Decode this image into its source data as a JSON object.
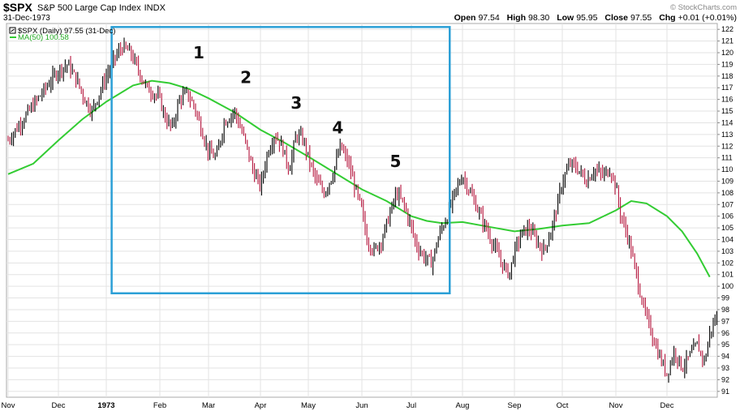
{
  "header": {
    "symbol": "$SPX",
    "name": "S&P 500 Large Cap Index",
    "exchange": "INDX",
    "date": "31-Dec-1973",
    "watermark": "© StockCharts.com",
    "quote": {
      "open_label": "Open",
      "open": "97.54",
      "high_label": "High",
      "high": "98.30",
      "low_label": "Low",
      "low": "95.95",
      "close_label": "Close",
      "close": "97.55",
      "chg_label": "Chg",
      "chg": "+0.01 (+0.01%)"
    }
  },
  "legend": {
    "price": "$SPX (Daily) 97.55 (31-Dec)",
    "ma": "MA(50) 100.58"
  },
  "colors": {
    "up": "#000000",
    "down": "#b5153c",
    "ma": "#33cc33",
    "box": "#2b9fd6",
    "grid": "#e3e3e3"
  },
  "chart_data": {
    "type": "line",
    "ylim": [
      90.5,
      122.5
    ],
    "yticks": [
      91,
      92,
      93,
      94,
      95,
      96,
      97,
      98,
      99,
      100,
      101,
      102,
      103,
      104,
      105,
      106,
      107,
      108,
      109,
      110,
      111,
      112,
      113,
      114,
      115,
      116,
      117,
      118,
      119,
      120,
      121,
      122
    ],
    "months": [
      {
        "label": "Nov",
        "bold": false
      },
      {
        "label": "Dec",
        "bold": false
      },
      {
        "label": "1973",
        "bold": true
      },
      {
        "label": "Feb",
        "bold": false
      },
      {
        "label": "Mar",
        "bold": false
      },
      {
        "label": "Apr",
        "bold": false
      },
      {
        "label": "May",
        "bold": false
      },
      {
        "label": "Jun",
        "bold": false
      },
      {
        "label": "Jul",
        "bold": false
      },
      {
        "label": "Aug",
        "bold": false
      },
      {
        "label": "Sep",
        "bold": false
      },
      {
        "label": "Oct",
        "bold": false
      },
      {
        "label": "Nov",
        "bold": false
      },
      {
        "label": "Dec",
        "bold": false
      }
    ],
    "price_series": {
      "name": "$SPX (Daily)",
      "points": [
        [
          0,
          112.5
        ],
        [
          0.25,
          114
        ],
        [
          0.5,
          115.5
        ],
        [
          0.75,
          117
        ],
        [
          1,
          118.5
        ],
        [
          1.2,
          119
        ],
        [
          1.4,
          117.5
        ],
        [
          1.55,
          116
        ],
        [
          1.7,
          115
        ],
        [
          1.85,
          116.5
        ],
        [
          2,
          118
        ],
        [
          2.15,
          119.5
        ],
        [
          2.3,
          120.5
        ],
        [
          2.45,
          120
        ],
        [
          2.6,
          118.5
        ],
        [
          2.75,
          117
        ],
        [
          2.9,
          116.5
        ],
        [
          3,
          116
        ],
        [
          3.1,
          114.5
        ],
        [
          3.25,
          113.5
        ],
        [
          3.4,
          116
        ],
        [
          3.55,
          116.5
        ],
        [
          3.7,
          115.5
        ],
        [
          3.85,
          113.5
        ],
        [
          4,
          111.5
        ],
        [
          4.15,
          111
        ],
        [
          4.3,
          114
        ],
        [
          4.5,
          115
        ],
        [
          4.7,
          112.5
        ],
        [
          4.85,
          110
        ],
        [
          5,
          108.5
        ],
        [
          5.15,
          111.5
        ],
        [
          5.3,
          113
        ],
        [
          5.45,
          112
        ],
        [
          5.6,
          110
        ],
        [
          5.75,
          113
        ],
        [
          5.9,
          112.5
        ],
        [
          6,
          111
        ],
        [
          6.15,
          109
        ],
        [
          6.3,
          108
        ],
        [
          6.45,
          109.5
        ],
        [
          6.6,
          112
        ],
        [
          6.75,
          110.5
        ],
        [
          6.9,
          108
        ],
        [
          7,
          106.5
        ],
        [
          7.1,
          104
        ],
        [
          7.25,
          103
        ],
        [
          7.4,
          104
        ],
        [
          7.55,
          106
        ],
        [
          7.7,
          108
        ],
        [
          7.85,
          107
        ],
        [
          8,
          105
        ],
        [
          8.1,
          103.5
        ],
        [
          8.25,
          102.5
        ],
        [
          8.4,
          102
        ],
        [
          8.55,
          104.5
        ],
        [
          8.7,
          106
        ],
        [
          8.85,
          108
        ],
        [
          9,
          109.5
        ],
        [
          9.15,
          108
        ],
        [
          9.3,
          106.5
        ],
        [
          9.45,
          105
        ],
        [
          9.6,
          103.5
        ],
        [
          9.75,
          102
        ],
        [
          9.9,
          101
        ],
        [
          10,
          103
        ],
        [
          10.15,
          104.5
        ],
        [
          10.3,
          105
        ],
        [
          10.45,
          104
        ],
        [
          10.6,
          103
        ],
        [
          10.75,
          104.5
        ],
        [
          10.9,
          107
        ],
        [
          11,
          109
        ],
        [
          11.15,
          110.5
        ],
        [
          11.3,
          110
        ],
        [
          11.45,
          109
        ],
        [
          11.6,
          110
        ],
        [
          11.75,
          109.5
        ],
        [
          11.9,
          110
        ],
        [
          12,
          108.5
        ],
        [
          12.1,
          106
        ],
        [
          12.25,
          104
        ],
        [
          12.4,
          101
        ],
        [
          12.55,
          98
        ],
        [
          12.7,
          96
        ],
        [
          12.85,
          94
        ],
        [
          13,
          92.5
        ],
        [
          13.15,
          94.5
        ],
        [
          13.3,
          93
        ],
        [
          13.45,
          94
        ],
        [
          13.6,
          95
        ],
        [
          13.75,
          93.5
        ],
        [
          13.85,
          96
        ],
        [
          14,
          97.5
        ]
      ]
    },
    "ma_series": {
      "name": "MA(50)",
      "points": [
        [
          0,
          109.6
        ],
        [
          0.5,
          110.5
        ],
        [
          1,
          112.5
        ],
        [
          1.5,
          114.3
        ],
        [
          2,
          115.8
        ],
        [
          2.5,
          117.2
        ],
        [
          2.85,
          117.6
        ],
        [
          3.2,
          117.4
        ],
        [
          3.6,
          116.9
        ],
        [
          4,
          116.1
        ],
        [
          4.5,
          114.9
        ],
        [
          5,
          113.4
        ],
        [
          5.5,
          112.3
        ],
        [
          6,
          111.1
        ],
        [
          6.5,
          109.7
        ],
        [
          7,
          108.3
        ],
        [
          7.5,
          107.3
        ],
        [
          8,
          106
        ],
        [
          8.3,
          105.6
        ],
        [
          8.6,
          105.4
        ],
        [
          9,
          105.5
        ],
        [
          9.5,
          105.1
        ],
        [
          10,
          104.7
        ],
        [
          10.5,
          104.9
        ],
        [
          11,
          105.2
        ],
        [
          11.5,
          105.4
        ],
        [
          12,
          106.5
        ],
        [
          12.3,
          107.3
        ],
        [
          12.6,
          107.1
        ],
        [
          13,
          106
        ],
        [
          13.3,
          104.7
        ],
        [
          13.6,
          102.8
        ],
        [
          13.85,
          100.8
        ]
      ]
    },
    "annotations": [
      {
        "label": "1",
        "x": 3.8,
        "y": 119.5
      },
      {
        "label": "2",
        "x": 4.72,
        "y": 117.4
      },
      {
        "label": "3",
        "x": 5.75,
        "y": 115.2
      },
      {
        "label": "4",
        "x": 6.55,
        "y": 113.1
      },
      {
        "label": "5",
        "x": 7.68,
        "y": 110.2
      }
    ],
    "highlight_box": {
      "x0": 2.1,
      "x1": 8.75,
      "y0": 99.4,
      "y1": 122.2
    }
  }
}
